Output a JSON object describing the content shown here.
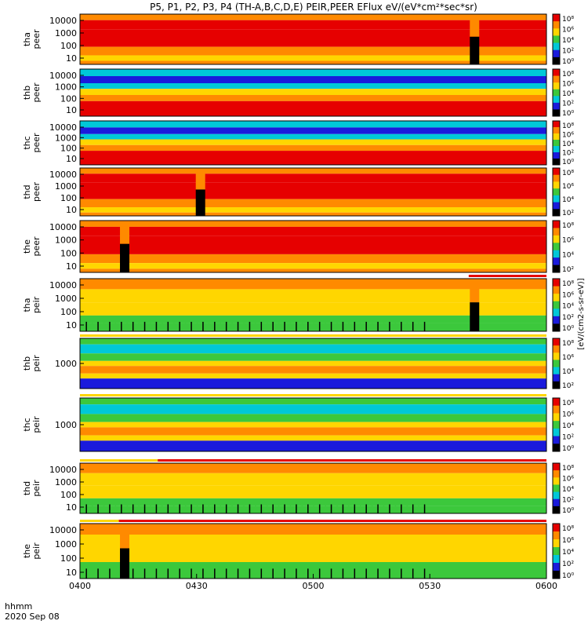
{
  "chart_data": {
    "type": "heatmap",
    "title": "P5, P1, P2, P3, P4 (TH-A,B,C,D,E) PEIR,PEER EFlux eV/(eV*cm²*sec*sr)",
    "xlabel": "hhmm",
    "date": "2020 Sep 08",
    "x_ticks": [
      "0400",
      "0430",
      "0500",
      "0530",
      "0600"
    ],
    "x_range_minutes": [
      0,
      120
    ],
    "x_tick_minutes": [
      0,
      30,
      60,
      90,
      120
    ],
    "colorbar_label": "[eV/(cm2-s-sr-eV)]",
    "colors": {
      "red": "#e60000",
      "orange": "#ff8a00",
      "yellow": "#ffd600",
      "green": "#3cc83c",
      "cyan": "#00c8d8",
      "blue": "#1a1adc",
      "black": "#000000",
      "white": "#ffffff"
    },
    "panels": [
      {
        "id": "tha_peer",
        "label": "tha\npeer",
        "y_ticks": [
          "10000",
          "1000",
          "100",
          "10"
        ],
        "cb_ticks": [
          "10⁸",
          "10⁶",
          "10⁴",
          "10²",
          "10⁰"
        ],
        "mode_bar": "none",
        "gaps": [
          {
            "t": 101.5
          }
        ],
        "kind": "peer_hot"
      },
      {
        "id": "thb_peer",
        "label": "thb\npeer",
        "y_ticks": [
          "10000",
          "1000",
          "100",
          "10"
        ],
        "cb_ticks": [
          "10⁸",
          "10⁶",
          "10⁴",
          "10²",
          "10⁰"
        ],
        "mode_bar": "none",
        "gaps": [],
        "kind": "peer_cold"
      },
      {
        "id": "thc_peer",
        "label": "thc\npeer",
        "y_ticks": [
          "10000",
          "1000",
          "100",
          "10"
        ],
        "cb_ticks": [
          "10⁸",
          "10⁶",
          "10⁴",
          "10²",
          "10⁰"
        ],
        "mode_bar": "none",
        "gaps": [],
        "kind": "peer_cold"
      },
      {
        "id": "thd_peer",
        "label": "thd\npeer",
        "y_ticks": [
          "10000",
          "1000",
          "100",
          "10"
        ],
        "cb_ticks": [
          "10⁸",
          "10⁶",
          "10⁴",
          "10²"
        ],
        "mode_bar": "none",
        "gaps": [
          {
            "t": 31
          }
        ],
        "kind": "peer_hot"
      },
      {
        "id": "the_peer",
        "label": "the\npeer",
        "y_ticks": [
          "10000",
          "1000",
          "100",
          "10"
        ],
        "cb_ticks": [
          "10⁸",
          "10⁶",
          "10⁴",
          "10²"
        ],
        "mode_bar": "none",
        "gaps": [
          {
            "t": 11.5
          }
        ],
        "kind": "peer_hot"
      },
      {
        "id": "tha_peir",
        "label": "tha\npeir",
        "y_ticks": [
          "10000",
          "1000",
          "100",
          "10"
        ],
        "cb_ticks": [
          "10⁸",
          "10⁶",
          "10⁴",
          "10²",
          "10⁰"
        ],
        "mode_bar": "late",
        "gaps": [
          {
            "t": 101.5
          }
        ],
        "kind": "peir"
      },
      {
        "id": "thb_peir",
        "label": "thb\npeir",
        "y_ticks": [
          "1000"
        ],
        "cb_ticks": [
          "10⁸",
          "10⁶",
          "10⁴",
          "10²"
        ],
        "mode_bar": "yellow",
        "gaps": [],
        "kind": "peir_bands"
      },
      {
        "id": "thc_peir",
        "label": "thc\npeir",
        "y_ticks": [
          "1000"
        ],
        "cb_ticks": [
          "10⁸",
          "10⁶",
          "10⁴",
          "10²",
          "10⁰"
        ],
        "mode_bar": "yellow",
        "gaps": [],
        "kind": "peir_bands"
      },
      {
        "id": "thd_peir",
        "label": "thd\npeir",
        "y_ticks": [
          "10000",
          "1000",
          "100",
          "10"
        ],
        "cb_ticks": [
          "10⁸",
          "10⁶",
          "10⁴",
          "10²",
          "10⁰"
        ],
        "mode_bar": "early20",
        "gaps": [],
        "kind": "peir"
      },
      {
        "id": "the_peir",
        "label": "the\npeir",
        "y_ticks": [
          "10000",
          "1000",
          "100",
          "10"
        ],
        "cb_ticks": [
          "10⁸",
          "10⁶",
          "10⁴",
          "10²",
          "10⁰"
        ],
        "mode_bar": "early10",
        "gaps": [
          {
            "t": 11.5
          }
        ],
        "kind": "peir"
      }
    ]
  }
}
